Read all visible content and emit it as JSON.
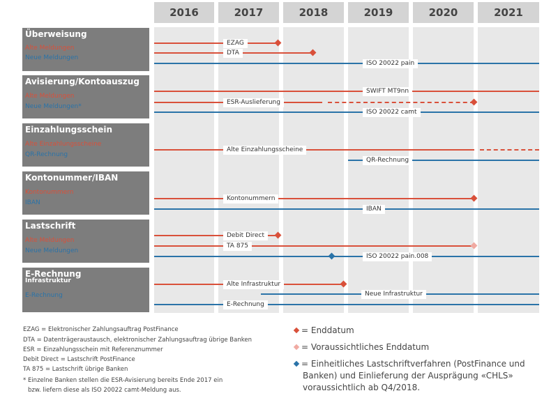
{
  "colors": {
    "red": "#d9503a",
    "blue": "#2a73a8",
    "light_red": "#f0aaa2",
    "panel": "#7d7d7d"
  },
  "years": [
    "2016",
    "2017",
    "2018",
    "2019",
    "2020",
    "2021"
  ],
  "sections": [
    {
      "title": "Überweisung",
      "subs": [
        {
          "text": "Alte Meldungen",
          "color": "red"
        },
        {
          "text": "Neue Meldungen",
          "color": "blue"
        }
      ]
    },
    {
      "title": "Avisierung/Kontoauszug",
      "subs": [
        {
          "text": "Alte Meldungen",
          "color": "red"
        },
        {
          "text": "Neue Meldungen*",
          "color": "blue"
        }
      ]
    },
    {
      "title": "Einzahlungsschein",
      "subs": [
        {
          "text": "Alte Einzahlungsscheine",
          "color": "red"
        },
        {
          "text": "QR-Rechnung",
          "color": "blue"
        }
      ]
    },
    {
      "title": "Kontonummer/IBAN",
      "subs": [
        {
          "text": "Kontonummern",
          "color": "red"
        },
        {
          "text": "IBAN",
          "color": "blue"
        }
      ]
    },
    {
      "title": "Lastschrift",
      "subs": [
        {
          "text": "Alte Meldungen",
          "color": "red"
        },
        {
          "text": "Neue Meldungen",
          "color": "blue"
        }
      ]
    },
    {
      "title": "E-Rechnung",
      "subs": [
        {
          "text": "Infrastruktur",
          "color": "white"
        },
        {
          "text": "E-Rechnung",
          "color": "blue"
        }
      ]
    }
  ],
  "timelines": [
    {
      "label": "EZAG",
      "color": "red",
      "start": 2016,
      "end": 2017.93,
      "marker": "end",
      "label_pos": "left"
    },
    {
      "label": "DTA",
      "color": "red",
      "start": 2016,
      "end": 2018.46,
      "marker": "end",
      "label_pos": "left"
    },
    {
      "label": "ISO 20022 pain",
      "color": "blue",
      "start": 2016,
      "end": 2022,
      "label_pos": "center"
    },
    {
      "label": "SWIFT MT9nn",
      "color": "red",
      "start": 2016,
      "end": 2022,
      "label_pos": "center"
    },
    {
      "label": "ESR-Auslieferung",
      "color": "red",
      "start": 2016,
      "end": 2018.6,
      "dashed_end": 2020.95,
      "marker": "end",
      "label_pos": "left"
    },
    {
      "label": "ISO 20022 camt",
      "color": "blue",
      "start": 2016,
      "end": 2022,
      "label_pos": "center"
    },
    {
      "label": "Alte Einzahlungsscheine",
      "color": "red",
      "start": 2016,
      "end": 2020.95,
      "dashed_end": 2022,
      "label_pos": "left"
    },
    {
      "label": "QR-Rechnung",
      "color": "blue",
      "start": 2019,
      "end": 2022,
      "label_pos": "center"
    },
    {
      "label": "Kontonummern",
      "color": "red",
      "start": 2016,
      "end": 2020.95,
      "marker": "end",
      "label_pos": "left"
    },
    {
      "label": "IBAN",
      "color": "blue",
      "start": 2016,
      "end": 2022,
      "label_pos": "center"
    },
    {
      "label": "Debit Direct",
      "color": "red",
      "start": 2016,
      "end": 2017.93,
      "marker": "end",
      "label_pos": "left"
    },
    {
      "label": "TA 875",
      "color": "red",
      "start": 2016,
      "end": 2020.95,
      "marker": "expected",
      "label_pos": "left"
    },
    {
      "label": "ISO 20022 pain.008",
      "color": "blue",
      "start": 2016,
      "end": 2022,
      "marker_at": 2018.75,
      "marker": "chls",
      "label_pos": "center"
    },
    {
      "label": "Alte Infrastruktur",
      "color": "red",
      "start": 2016,
      "end": 2018.94,
      "marker": "end",
      "label_pos": "left"
    },
    {
      "label": "Neue Infrastruktur",
      "color": "blue",
      "start": 2017.66,
      "end": 2022,
      "label_pos": "center"
    },
    {
      "label": "E-Rechnung",
      "color": "blue",
      "start": 2016,
      "end": 2022,
      "label_pos": "left"
    }
  ],
  "footnotes": [
    "EZAG = Elektronischer Zahlungsauftrag PostFinance",
    "DTA = Datenträgeraustausch, elektronischer Zahlungsauftrag übrige Banken",
    "ESR = Einzahlungsschein mit Referenznummer",
    "Debit Direct = Lastschrift PostFinance",
    "TA 875 = Lastschrift übrige Banken",
    "* Einzelne Banken stellen die ESR-Avisierung bereits Ende 2017 ein",
    "bzw. liefern diese als ISO 20022 camt-Meldung aus."
  ],
  "legend": [
    {
      "marker": "end",
      "text": "= Enddatum"
    },
    {
      "marker": "expected",
      "text": "= Voraussichtliches Enddatum"
    },
    {
      "marker": "chls",
      "text": "= Einheitliches Lastschriftverfahren (PostFinance und Banken) und Einlieferung der Ausprägung «CHLS» voraussichtlich ab Q4/2018."
    }
  ]
}
